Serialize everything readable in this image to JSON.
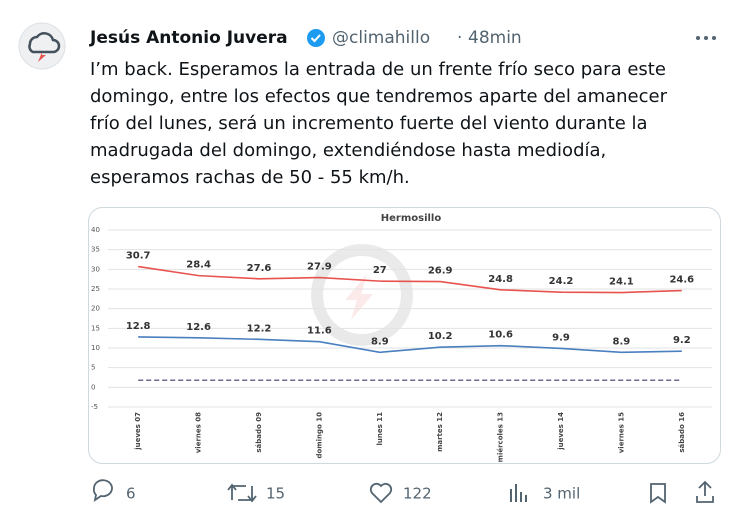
{
  "tweet": {
    "author": "Jesús Antonio Juvera",
    "handle": "@climahillo",
    "separator": "·",
    "time": "48min",
    "text_lines": [
      "I’m back. Esperamos la entrada de un frente frío seco para este",
      "domingo, entre los efectos que tendremos aparte del amanecer",
      "frío del lunes, será un incremento fuerte del viento durante la",
      "madrugada del domingo, extendiéndose hasta mediodía,",
      "esperamos rachas de 50 - 55 km/h."
    ],
    "actions": {
      "replies": 6,
      "retweets": 15,
      "likes": 122,
      "views": "3 mil"
    }
  },
  "chart_data": {
    "type": "line",
    "title": "Hermosillo",
    "categories": [
      "jueves 07",
      "viernes 08",
      "sábado 09",
      "domingo 10",
      "lunes 11",
      "martes 12",
      "miércoles 13",
      "jueves 14",
      "viernes 15",
      "sábado 16"
    ],
    "series": [
      {
        "color": "#e8534f",
        "show_labels": true,
        "values": [
          30.7,
          28.4,
          27.6,
          27.9,
          27,
          26.9,
          24.8,
          24.2,
          24.1,
          24.6
        ]
      },
      {
        "color": "#4a7fc0",
        "show_labels": true,
        "values": [
          12.8,
          12.6,
          12.2,
          11.6,
          8.9,
          10.2,
          10.6,
          9.9,
          8.9,
          9.2
        ]
      },
      {
        "color": "#6a6a8a",
        "dashed": true,
        "show_labels": false,
        "values": [
          1.8,
          1.8,
          1.8,
          1.8,
          1.8,
          1.8,
          1.8,
          1.8,
          1.8,
          1.8
        ]
      }
    ],
    "ylim": [
      -5,
      40
    ],
    "yticks": [
      -5,
      0,
      5,
      10,
      15,
      20,
      25,
      30,
      35,
      40
    ],
    "grid": true
  }
}
